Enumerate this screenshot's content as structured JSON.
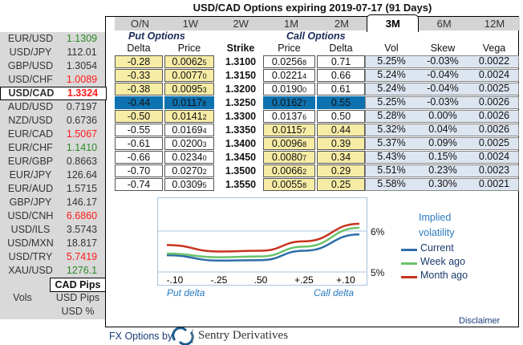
{
  "title": "USD/CAD Options expiring 2019-07-17 (91 Days)",
  "pairs": [
    {
      "name": "EUR/USD",
      "value": "1.1309",
      "color": "#2a8a2a"
    },
    {
      "name": "USD/JPY",
      "value": "112.01",
      "color": "#333333"
    },
    {
      "name": "GBP/USD",
      "value": "1.3054",
      "color": "#333333"
    },
    {
      "name": "USD/CHF",
      "value": "1.0089",
      "color": "#ff1a1a"
    },
    {
      "name": "USD/CAD",
      "value": "1.3324",
      "color": "#ff1a1a",
      "selected": true
    },
    {
      "name": "AUD/USD",
      "value": "0.7197",
      "color": "#333333"
    },
    {
      "name": "NZD/USD",
      "value": "0.6736",
      "color": "#333333"
    },
    {
      "name": "EUR/CAD",
      "value": "1.5067",
      "color": "#ff1a1a"
    },
    {
      "name": "EUR/CHF",
      "value": "1.1410",
      "color": "#2a8a2a"
    },
    {
      "name": "EUR/GBP",
      "value": "0.8663",
      "color": "#333333"
    },
    {
      "name": "EUR/JPY",
      "value": "126.64",
      "color": "#333333"
    },
    {
      "name": "EUR/AUD",
      "value": "1.5715",
      "color": "#333333"
    },
    {
      "name": "GBP/JPY",
      "value": "146.17",
      "color": "#333333"
    },
    {
      "name": "USD/CNH",
      "value": "6.6860",
      "color": "#ff1a1a"
    },
    {
      "name": "USD/ILS",
      "value": "3.5743",
      "color": "#333333"
    },
    {
      "name": "USD/MXN",
      "value": "18.817",
      "color": "#333333"
    },
    {
      "name": "USD/TRY",
      "value": "5.7419",
      "color": "#ff1a1a"
    },
    {
      "name": "XAU/USD",
      "value": "1276.1",
      "color": "#2a8a2a"
    }
  ],
  "units": {
    "selected": "CAD Pips",
    "vols": "Vols",
    "usd_pips": "USD Pips",
    "usd_pct": "USD %"
  },
  "tabs": [
    "O/N",
    "1W",
    "2W",
    "1M",
    "2M",
    "3M",
    "6M",
    "12M"
  ],
  "active_tab": "3M",
  "put_title": "Put Options",
  "call_title": "Call Options",
  "headers": {
    "delta": "Delta",
    "price": "Price",
    "strike": "Strike",
    "call_price": "Price",
    "call_delta": "Delta",
    "vol": "Vol",
    "skew": "Skew",
    "vega": "Vega"
  },
  "rows": [
    {
      "pd": "-0.28",
      "pp": "0.0062",
      "ps": "5",
      "strike": "1.3100",
      "cp": "0.0256",
      "cs": "8",
      "cd": "0.71",
      "vol": "5.25%",
      "skew": "-0.03%",
      "vega": "0.0022",
      "put": "y",
      "call": "w"
    },
    {
      "pd": "-0.33",
      "pp": "0.0077",
      "ps": "0",
      "strike": "1.3150",
      "cp": "0.0221",
      "cs": "4",
      "cd": "0.66",
      "vol": "5.24%",
      "skew": "-0.04%",
      "vega": "0.0024",
      "put": "y",
      "call": "w"
    },
    {
      "pd": "-0.38",
      "pp": "0.0095",
      "ps": "3",
      "strike": "1.3200",
      "cp": "0.0190",
      "cs": "0",
      "cd": "0.61",
      "vol": "5.24%",
      "skew": "-0.04%",
      "vega": "0.0025",
      "put": "y",
      "call": "w"
    },
    {
      "pd": "-0.44",
      "pp": "0.0117",
      "ps": "8",
      "strike": "1.3250",
      "cp": "0.0162",
      "cs": "7",
      "cd": "0.55",
      "vol": "5.25%",
      "skew": "-0.03%",
      "vega": "0.0026",
      "put": "b",
      "call": "b"
    },
    {
      "pd": "-0.50",
      "pp": "0.0141",
      "ps": "2",
      "strike": "1.3300",
      "cp": "0.0137",
      "cs": "6",
      "cd": "0.50",
      "vol": "5.28%",
      "skew": "0.00%",
      "vega": "0.0026",
      "put": "y",
      "call": "w"
    },
    {
      "pd": "-0.55",
      "pp": "0.0169",
      "ps": "4",
      "strike": "1.3350",
      "cp": "0.0115",
      "cs": "7",
      "cd": "0.44",
      "vol": "5.32%",
      "skew": "0.04%",
      "vega": "0.0026",
      "put": "w",
      "call": "y"
    },
    {
      "pd": "-0.61",
      "pp": "0.0200",
      "ps": "3",
      "strike": "1.3400",
      "cp": "0.0096",
      "cs": "8",
      "cd": "0.39",
      "vol": "5.37%",
      "skew": "0.09%",
      "vega": "0.0025",
      "put": "w",
      "call": "y"
    },
    {
      "pd": "-0.66",
      "pp": "0.0234",
      "ps": "0",
      "strike": "1.3450",
      "cp": "0.0080",
      "cs": "7",
      "cd": "0.34",
      "vol": "5.43%",
      "skew": "0.15%",
      "vega": "0.0024",
      "put": "w",
      "call": "y"
    },
    {
      "pd": "-0.70",
      "pp": "0.0270",
      "ps": "2",
      "strike": "1.3500",
      "cp": "0.0066",
      "cs": "2",
      "cd": "0.29",
      "vol": "5.51%",
      "skew": "0.23%",
      "vega": "0.0023",
      "put": "w",
      "call": "y"
    },
    {
      "pd": "-0.74",
      "pp": "0.0309",
      "ps": "5",
      "strike": "1.3550",
      "cp": "0.0055",
      "cs": "8",
      "cd": "0.25",
      "vol": "5.58%",
      "skew": "0.30%",
      "vega": "0.0021",
      "put": "w",
      "call": "y"
    }
  ],
  "chart_data": {
    "type": "line",
    "categories": [
      "-.10",
      "-.25",
      ".50",
      "+.25",
      "+.10"
    ],
    "xlabel_left": "Put delta",
    "xlabel_right": "Call delta",
    "yticks": [
      "5%",
      "6%"
    ],
    "ylim": [
      5,
      6.4
    ],
    "legend_title": "Implied volatility",
    "series": [
      {
        "name": "Current",
        "color": "#2e6da8",
        "values": [
          5.41,
          5.28,
          5.29,
          5.52,
          5.92
        ]
      },
      {
        "name": "Week ago",
        "color": "#6cc26a",
        "values": [
          5.45,
          5.36,
          5.38,
          5.62,
          6.08
        ]
      },
      {
        "name": "Month ago",
        "color": "#c8321e",
        "values": [
          5.66,
          5.5,
          5.52,
          5.75,
          6.18
        ]
      }
    ]
  },
  "footer": {
    "disclaimer": "Disclaimer",
    "by": "FX Options by",
    "brand": "Sentry Derivatives"
  }
}
